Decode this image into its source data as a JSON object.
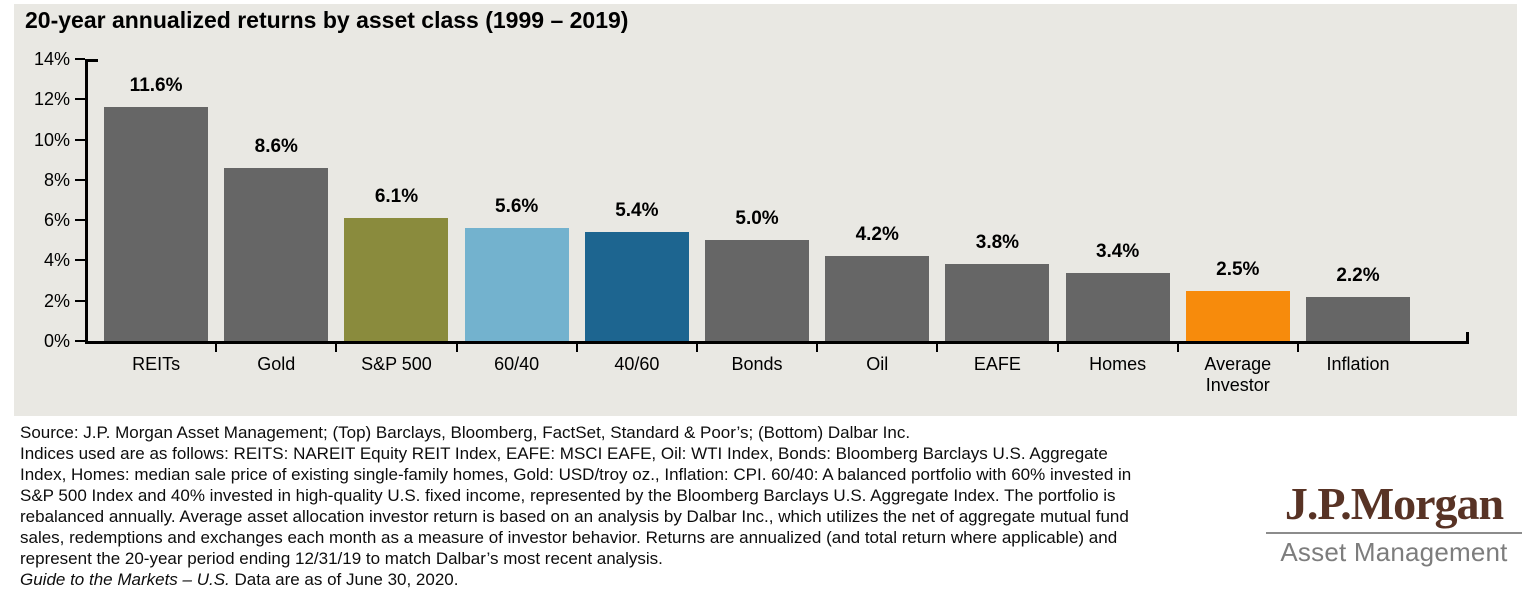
{
  "title": "20-year annualized returns by asset class (1999 – 2019)",
  "chart_data": {
    "type": "bar",
    "title": "20-year annualized returns by asset class (1999 – 2019)",
    "categories": [
      "REITs",
      "Gold",
      "S&P 500",
      "60/40",
      "40/60",
      "Bonds",
      "Oil",
      "EAFE",
      "Homes",
      "Average Investor",
      "Inflation"
    ],
    "values": [
      11.6,
      8.6,
      6.1,
      5.6,
      5.4,
      5.0,
      4.2,
      3.8,
      3.4,
      2.5,
      2.2
    ],
    "value_labels": [
      "11.6%",
      "8.6%",
      "6.1%",
      "5.6%",
      "5.4%",
      "5.0%",
      "4.2%",
      "3.8%",
      "3.4%",
      "2.5%",
      "2.2%"
    ],
    "bar_colors": [
      "#666666",
      "#666666",
      "#8a8b3d",
      "#73b2ce",
      "#1d6590",
      "#666666",
      "#666666",
      "#666666",
      "#666666",
      "#f78b0c",
      "#666666"
    ],
    "xlabel": "",
    "ylabel": "",
    "ylim": [
      0,
      14
    ],
    "y_ticks": [
      "14%",
      "12%",
      "10%",
      "8%",
      "6%",
      "4%",
      "2%",
      "0%"
    ],
    "grid": false,
    "legend": false
  },
  "footer": {
    "lines": [
      "Source: J.P. Morgan Asset Management; (Top) Barclays, Bloomberg, FactSet, Standard & Poor’s; (Bottom) Dalbar Inc.",
      "Indices used are as follows: REITS: NAREIT Equity REIT Index, EAFE: MSCI EAFE, Oil: WTI Index, Bonds: Bloomberg Barclays U.S. Aggregate",
      "Index, Homes: median sale price of existing single-family homes, Gold: USD/troy oz., Inflation: CPI. 60/40: A balanced portfolio with 60% invested in",
      "S&P 500 Index and 40% invested in high-quality U.S. fixed income, represented by the Bloomberg Barclays U.S. Aggregate Index. The portfolio is",
      "rebalanced annually. Average asset allocation investor return is based on an analysis by Dalbar Inc., which utilizes the net of aggregate mutual fund",
      "sales, redemptions and exchanges each month as a measure of investor behavior. Returns are annualized (and total return where applicable) and",
      "represent the 20-year period ending 12/31/19 to match Dalbar’s most recent analysis."
    ],
    "guide_italic": "Guide to the Markets – U.S.",
    "guide_rest": " Data are as of June 30, 2020."
  },
  "logo": {
    "name": "J.P.Morgan",
    "subtitle": "Asset Management",
    "name_color": "#583325",
    "subtitle_color": "#7d7d7d"
  },
  "colors": {
    "panel_bg": "#e9e8e3",
    "bar_gray": "#666666",
    "olive": "#8a8b3d",
    "light_blue": "#73b2ce",
    "dark_blue": "#1d6590",
    "orange": "#f78b0c",
    "axis": "#000000"
  }
}
